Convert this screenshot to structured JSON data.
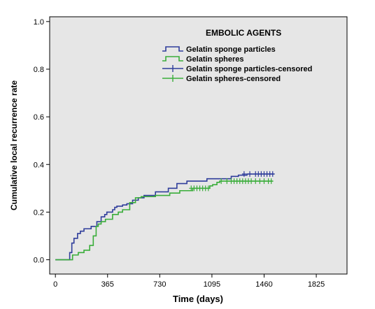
{
  "chart_data": {
    "type": "line",
    "subtype": "kaplan-meier step",
    "title": "",
    "xlabel": "Time (days)",
    "ylabel": "Cumulative local recurrence rate",
    "xlim": [
      -40,
      2040
    ],
    "ylim": [
      -0.06,
      1.02
    ],
    "xticks": [
      0,
      365,
      730,
      1095,
      1460,
      1825
    ],
    "xtick_labels": [
      "0",
      "365",
      "730",
      "1095",
      "1460",
      "1825"
    ],
    "yticks": [
      0.0,
      0.2,
      0.4,
      0.6,
      0.8,
      1.0
    ],
    "ytick_labels": [
      "0.0",
      "0.2",
      "0.4",
      "0.6",
      "0.8",
      "1.0"
    ],
    "grid": false,
    "background_color": "#e6e6e6",
    "legend": {
      "title": "EMBOLIC AGENTS",
      "position": "top-right",
      "entries": [
        {
          "label": "Gelatin sponge particles",
          "symbol": "step",
          "color": "#2f3d9b"
        },
        {
          "label": "Gelatin spheres",
          "symbol": "step",
          "color": "#3aad3a"
        },
        {
          "label": "Gelatin sponge particles-censored",
          "symbol": "plus",
          "color": "#2f3d9b"
        },
        {
          "label": "Gelatin spheres-censored",
          "symbol": "plus",
          "color": "#3aad3a"
        }
      ]
    },
    "series": [
      {
        "name": "Gelatin sponge particles",
        "color": "#2f3d9b",
        "x": [
          0,
          100,
          115,
          130,
          155,
          175,
          200,
          250,
          290,
          320,
          345,
          360,
          400,
          415,
          430,
          470,
          500,
          540,
          580,
          620,
          700,
          790,
          850,
          920,
          1060,
          1230,
          1280,
          1340,
          1530
        ],
        "y": [
          0.0,
          0.03,
          0.07,
          0.09,
          0.11,
          0.12,
          0.13,
          0.14,
          0.16,
          0.18,
          0.19,
          0.2,
          0.21,
          0.22,
          0.225,
          0.23,
          0.235,
          0.25,
          0.26,
          0.27,
          0.285,
          0.3,
          0.32,
          0.33,
          0.34,
          0.35,
          0.355,
          0.36,
          0.36
        ],
        "censored_x": [
          1320,
          1360,
          1400,
          1420,
          1440,
          1460,
          1480,
          1500,
          1520
        ],
        "censored_y": [
          0.36,
          0.36,
          0.36,
          0.36,
          0.36,
          0.36,
          0.36,
          0.36,
          0.36
        ]
      },
      {
        "name": "Gelatin spheres",
        "color": "#3aad3a",
        "x": [
          0,
          120,
          160,
          200,
          240,
          265,
          285,
          300,
          320,
          350,
          400,
          440,
          470,
          520,
          560,
          600,
          700,
          800,
          870,
          960,
          1080,
          1100,
          1130,
          1150,
          1520
        ],
        "y": [
          0.0,
          0.02,
          0.03,
          0.04,
          0.06,
          0.1,
          0.14,
          0.15,
          0.16,
          0.17,
          0.19,
          0.2,
          0.21,
          0.24,
          0.26,
          0.265,
          0.27,
          0.28,
          0.29,
          0.3,
          0.31,
          0.315,
          0.325,
          0.33,
          0.33
        ],
        "censored_x": [
          950,
          970,
          990,
          1010,
          1030,
          1050,
          1070,
          1160,
          1200,
          1230,
          1250,
          1270,
          1290,
          1310,
          1330,
          1350,
          1370,
          1400,
          1430,
          1460,
          1490,
          1510
        ],
        "censored_y": [
          0.3,
          0.3,
          0.3,
          0.3,
          0.3,
          0.3,
          0.3,
          0.33,
          0.33,
          0.33,
          0.33,
          0.33,
          0.33,
          0.33,
          0.33,
          0.33,
          0.33,
          0.33,
          0.33,
          0.33,
          0.33,
          0.33
        ]
      }
    ]
  }
}
